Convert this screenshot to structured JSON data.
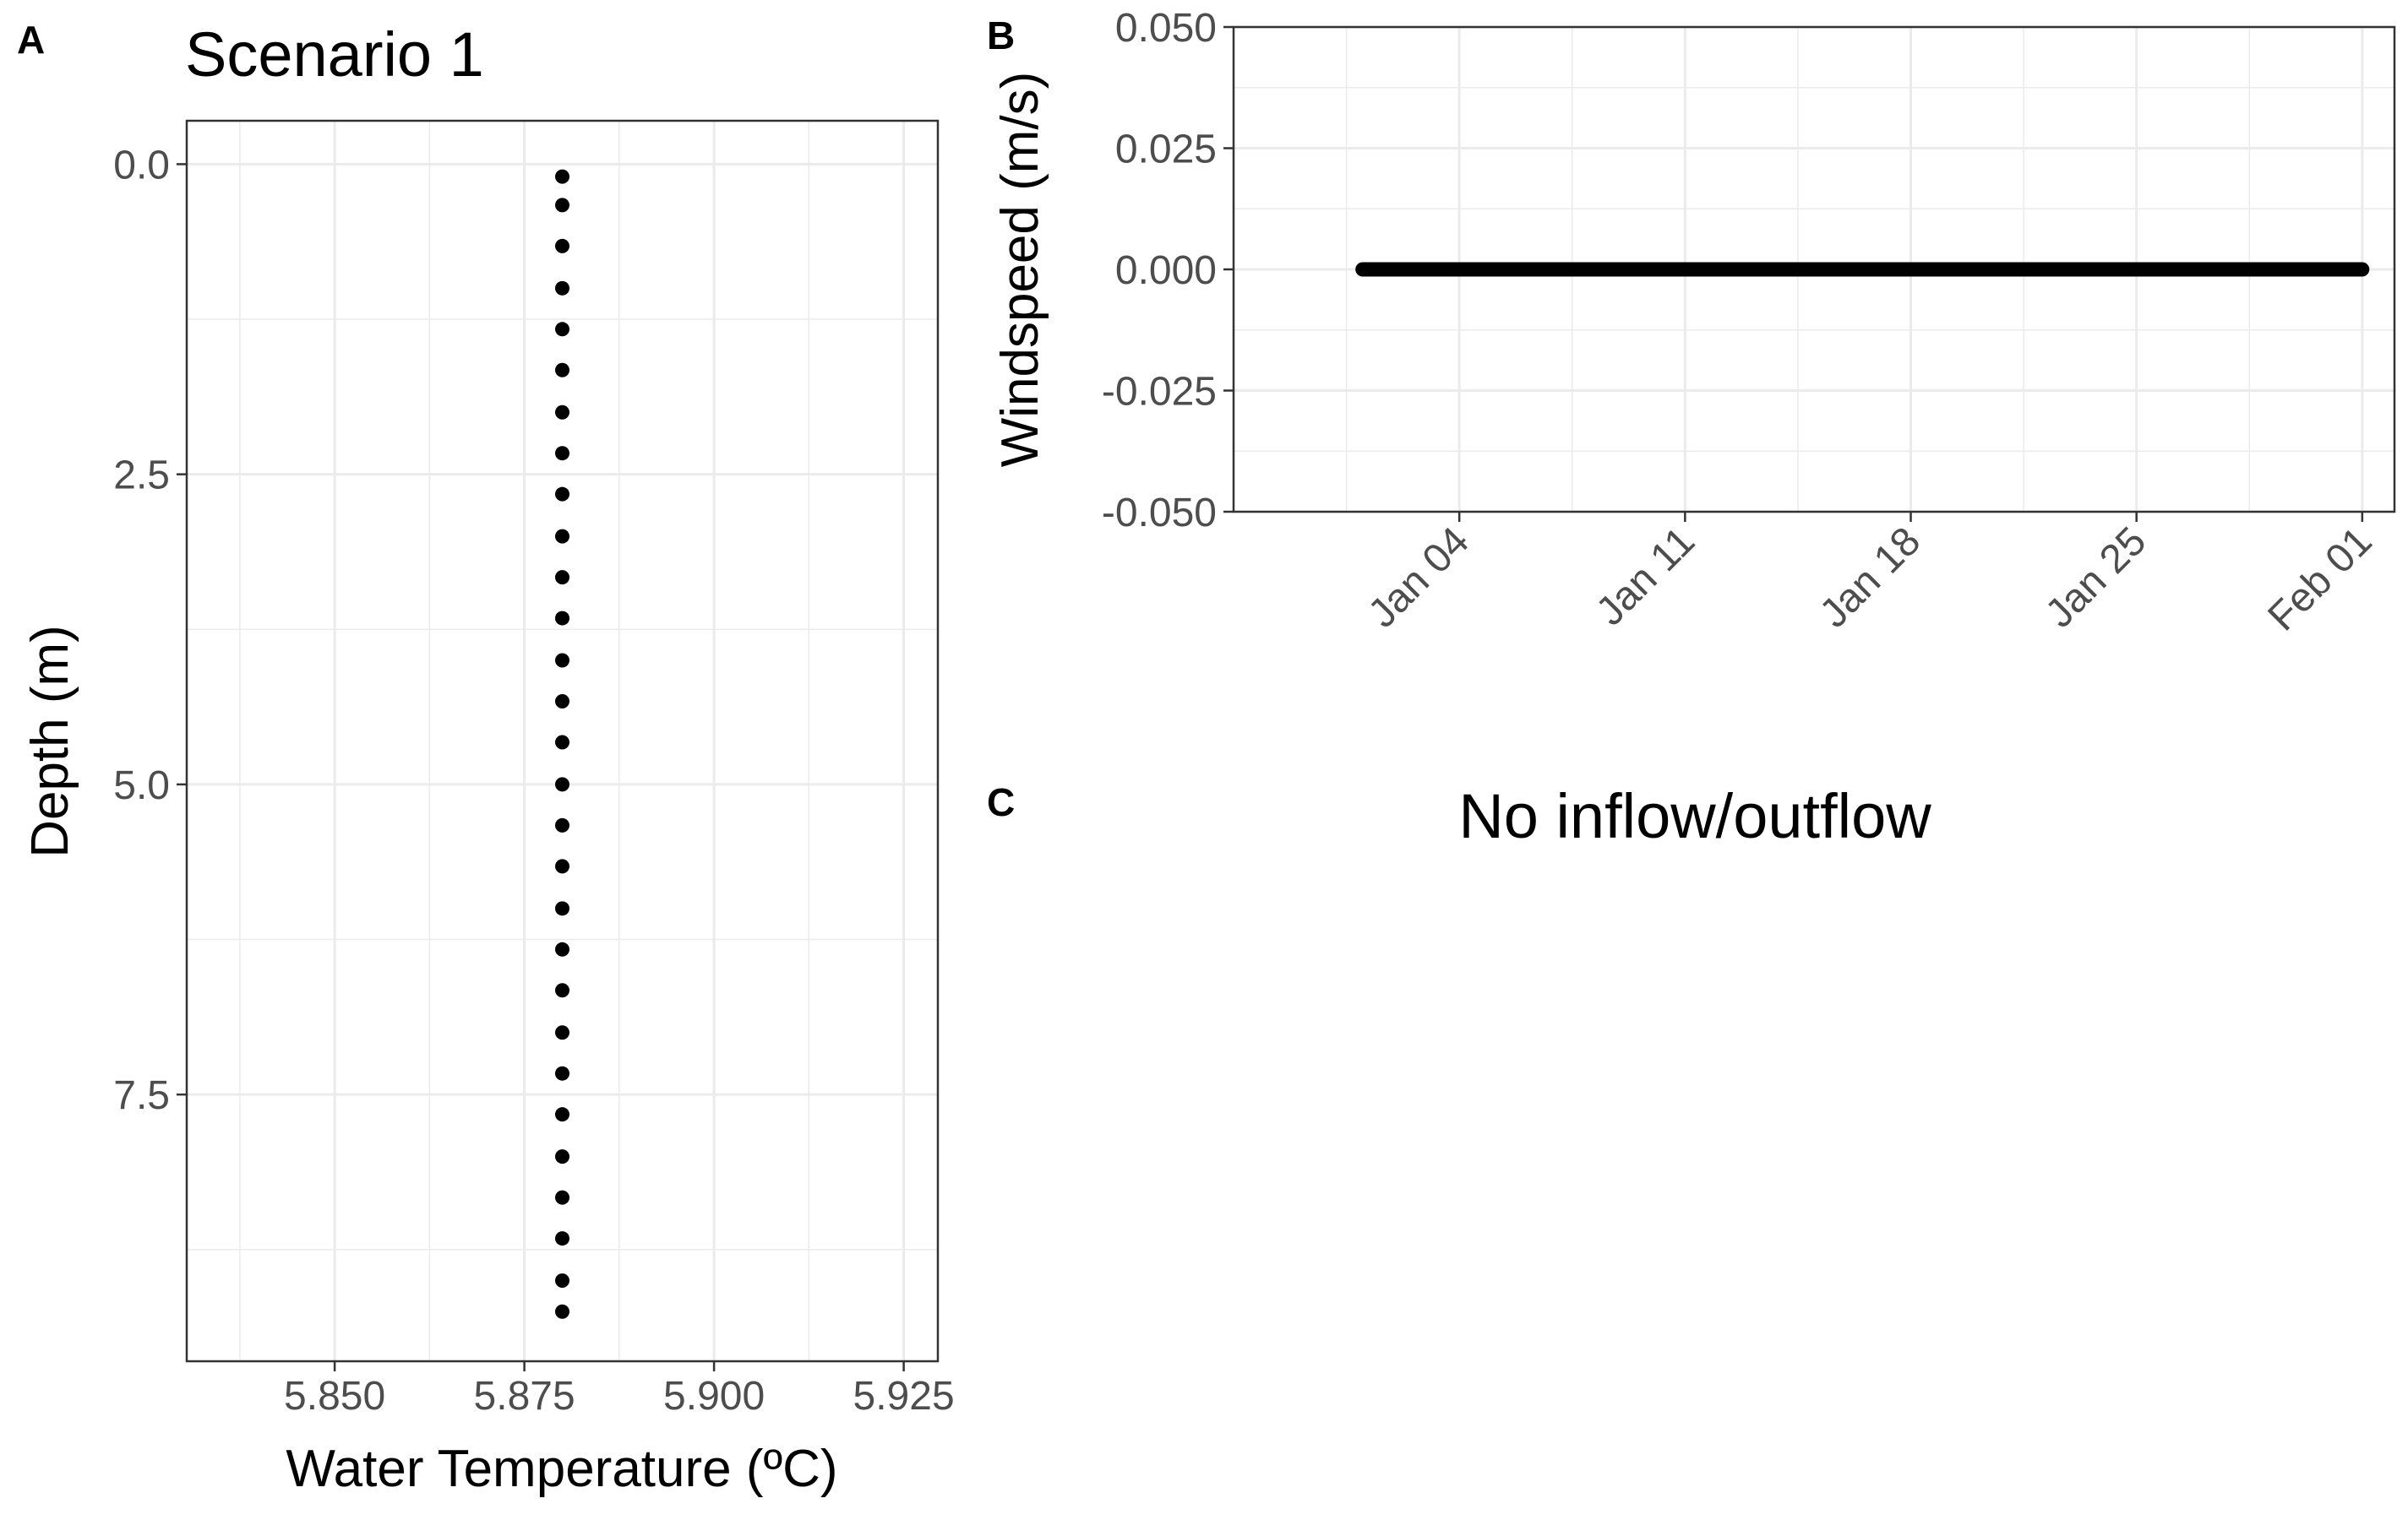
{
  "panels": {
    "a": {
      "letter": "A"
    },
    "b": {
      "letter": "B"
    },
    "c": {
      "letter": "C",
      "text": "No inflow/outflow"
    }
  },
  "chart_data": [
    {
      "type": "scatter",
      "title": "Scenario 1",
      "xlabel": "Water Temperature (ºC)",
      "ylabel": "Depth (m)",
      "xlim": [
        5.8305,
        5.9295
      ],
      "ylim": [
        9.65,
        -0.35
      ],
      "y_reversed": true,
      "grid": true,
      "legend": "none",
      "xticks": [
        5.85,
        5.875,
        5.9,
        5.925
      ],
      "xtick_labels": [
        "5.850",
        "5.875",
        "5.900",
        "5.925"
      ],
      "yticks": [
        0,
        2.5,
        5,
        7.5
      ],
      "ytick_labels": [
        "0.0",
        "2.5",
        "5.0",
        "7.5"
      ],
      "series": [
        {
          "x": [
            5.88,
            5.88,
            5.88,
            5.88,
            5.88,
            5.88,
            5.88,
            5.88,
            5.88,
            5.88,
            5.88,
            5.88,
            5.88,
            5.88,
            5.88,
            5.88,
            5.88,
            5.88,
            5.88,
            5.88,
            5.88,
            5.88,
            5.88,
            5.88,
            5.88,
            5.88,
            5.88,
            5.88,
            5.88
          ],
          "y": [
            0.1,
            0.33,
            0.66,
            1.0,
            1.33,
            1.66,
            2.0,
            2.33,
            2.66,
            3.0,
            3.33,
            3.66,
            4.0,
            4.33,
            4.66,
            5.0,
            5.33,
            5.66,
            6.0,
            6.33,
            6.66,
            7.0,
            7.33,
            7.66,
            8.0,
            8.33,
            8.66,
            9.0,
            9.25
          ]
        }
      ],
      "color": "#000000"
    },
    {
      "type": "line",
      "xlabel": "",
      "ylabel": "Windspeed (m/s)",
      "ylim": [
        -0.05,
        0.05
      ],
      "xlim": [
        "2023-12-28",
        "2024-02-02"
      ],
      "grid": true,
      "legend": "none",
      "yticks": [
        -0.05,
        -0.025,
        0,
        0.025,
        0.05
      ],
      "ytick_labels": [
        "-0.050",
        "-0.025",
        "0.000",
        "0.025",
        "0.050"
      ],
      "xticks": [
        "2024-01-04",
        "2024-01-11",
        "2024-01-18",
        "2024-01-25",
        "2024-02-01"
      ],
      "xtick_labels": [
        "Jan 04",
        "Jan 11",
        "Jan 18",
        "Jan 25",
        "Feb 01"
      ],
      "series": [
        {
          "x": [
            "2024-01-01",
            "2024-02-01"
          ],
          "y": [
            0,
            0
          ]
        }
      ],
      "color": "#000000"
    }
  ]
}
